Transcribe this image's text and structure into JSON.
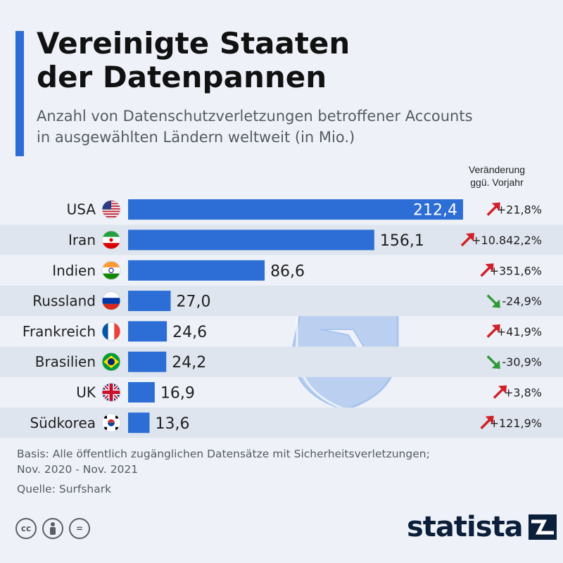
{
  "header": {
    "title_line1": "Vereinigte Staaten",
    "title_line2": "der Datenpannen",
    "subtitle_line1": "Anzahl von Datenschutzverletzungen betroffener Accounts",
    "subtitle_line2": "in ausgewählten Ländern weltweit (in Mio.)",
    "change_header_line1": "Veränderung",
    "change_header_line2": "ggü. Vorjahr"
  },
  "chart_data": {
    "type": "bar",
    "orientation": "horizontal",
    "categories": [
      "USA",
      "Iran",
      "Indien",
      "Russland",
      "Frankreich",
      "Brasilien",
      "UK",
      "Südkorea"
    ],
    "values": [
      212.4,
      156.1,
      86.6,
      27.0,
      24.6,
      24.2,
      16.9,
      13.6
    ],
    "value_labels": [
      "212,4",
      "156,1",
      "86,6",
      "27,0",
      "24,6",
      "24,2",
      "16,9",
      "13,6"
    ],
    "changes": [
      "+21,8%",
      "+10.842,2%",
      "+351,6%",
      "-24,9%",
      "+41,9%",
      "-30,9%",
      "+3,8%",
      "+121,9%"
    ],
    "change_directions": [
      "up",
      "up",
      "up",
      "down",
      "up",
      "down",
      "up",
      "up"
    ],
    "flags": [
      "us-flag-icon",
      "iran-flag-icon",
      "india-flag-icon",
      "russia-flag-icon",
      "france-flag-icon",
      "brazil-flag-icon",
      "uk-flag-icon",
      "south-korea-flag-icon"
    ],
    "bar_color": "#2c6ed5",
    "up_color": "#d0202a",
    "down_color": "#2f9a3a",
    "xlim": [
      0,
      212.4
    ]
  },
  "footer": {
    "basis_line1": "Basis: Alle öffentlich zugänglichen Datensätze mit Sicherheitsverletzungen;",
    "basis_line2": "Nov. 2020 - Nov. 2021",
    "source": "Quelle: Surfshark",
    "cc_label": "cc",
    "nd_label": "="
  },
  "brand": {
    "logo_text": "statista"
  }
}
